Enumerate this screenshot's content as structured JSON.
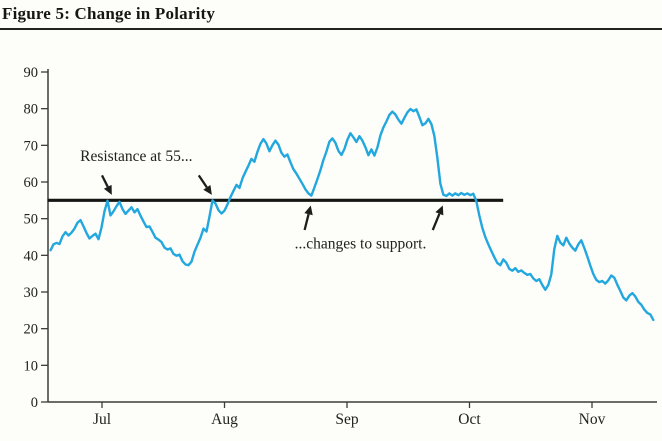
{
  "figure": {
    "title": "Figure 5: Change in Polarity"
  },
  "colors": {
    "series_line": "#22a7de",
    "ink": "#1d1d1b",
    "axis": "#3c3c38",
    "background": "#fdfdfa"
  },
  "chart_data": {
    "type": "line",
    "title": "Figure 5: Change in Polarity",
    "xlabel": "",
    "ylabel": "",
    "x_axis": {
      "tick_labels": [
        "Jul",
        "Aug",
        "Sep",
        "Oct",
        "Nov"
      ],
      "tick_positions_months": [
        0,
        1,
        2,
        3,
        4
      ]
    },
    "y_axis": {
      "ticks": [
        0,
        10,
        20,
        30,
        40,
        50,
        60,
        70,
        80,
        90
      ],
      "range": [
        0,
        90
      ]
    },
    "grid": false,
    "legend": "none",
    "series": [
      {
        "name": "polarity-index",
        "color": "#22a7de",
        "x_start_month": -0.42,
        "x_end_month": 4.5,
        "values": [
          41.4,
          43.0,
          43.4,
          43.1,
          45.2,
          46.3,
          45.4,
          46.2,
          47.3,
          48.9,
          49.6,
          47.9,
          46.1,
          44.6,
          45.3,
          45.9,
          44.4,
          47.6,
          52.0,
          54.9,
          50.9,
          52.0,
          53.4,
          54.6,
          52.6,
          51.3,
          52.2,
          53.1,
          51.7,
          52.6,
          50.8,
          49.2,
          47.7,
          47.9,
          46.4,
          44.8,
          44.3,
          43.6,
          42.1,
          41.6,
          41.9,
          40.4,
          39.9,
          40.2,
          38.4,
          37.5,
          37.3,
          38.3,
          41.0,
          42.9,
          44.8,
          47.3,
          46.5,
          50.6,
          55.0,
          54.1,
          52.3,
          51.4,
          52.2,
          53.9,
          55.9,
          57.6,
          59.2,
          58.4,
          61.0,
          62.8,
          64.5,
          66.3,
          65.5,
          68.2,
          70.4,
          71.7,
          70.5,
          68.4,
          70.0,
          71.3,
          70.2,
          68.0,
          66.9,
          67.5,
          65.4,
          63.5,
          62.3,
          60.9,
          59.5,
          58.0,
          56.9,
          56.3,
          58.5,
          60.8,
          63.2,
          66.0,
          68.3,
          71.0,
          71.9,
          70.7,
          68.5,
          67.4,
          69.0,
          71.5,
          73.3,
          72.2,
          70.9,
          72.5,
          71.3,
          69.5,
          67.3,
          68.9,
          67.2,
          69.4,
          72.7,
          74.9,
          76.5,
          78.3,
          79.2,
          78.4,
          77.0,
          75.9,
          77.5,
          79.0,
          79.9,
          79.3,
          79.8,
          77.7,
          75.5,
          76.0,
          77.2,
          75.8,
          72.5,
          66.5,
          59.5,
          56.5,
          56.2,
          56.9,
          56.3,
          56.9,
          56.4,
          57.0,
          56.5,
          56.9,
          56.4,
          56.8,
          54.8,
          50.9,
          47.5,
          45.0,
          43.0,
          41.2,
          39.5,
          37.9,
          37.3,
          38.9,
          38.0,
          36.3,
          35.8,
          36.5,
          35.5,
          35.9,
          35.2,
          34.7,
          34.9,
          33.7,
          33.0,
          33.5,
          31.9,
          30.6,
          31.9,
          34.8,
          41.7,
          45.3,
          43.5,
          42.7,
          44.8,
          43.2,
          42.1,
          41.3,
          43.0,
          44.1,
          42.0,
          39.7,
          37.2,
          34.9,
          33.3,
          32.7,
          33.0,
          32.3,
          33.2,
          34.5,
          33.9,
          32.0,
          30.3,
          28.5,
          27.7,
          29.0,
          29.7,
          28.8,
          27.3,
          26.5,
          25.2,
          24.3,
          23.9,
          22.4
        ]
      }
    ],
    "reference_line": {
      "label": "resistance-support-level",
      "value": 55,
      "x_from_month": -0.444,
      "x_to_month": 3.275,
      "color": "#161614"
    },
    "annotations": [
      {
        "id": "resistance",
        "text": "Resistance at 55...",
        "x_month": 0.28,
        "y_value": 65.7,
        "anchor": "middle"
      },
      {
        "id": "support",
        "text": "...changes to support.",
        "x_month": 2.11,
        "y_value": 41.8,
        "anchor": "middle"
      }
    ],
    "arrows": [
      {
        "id": "resistance-arrow-1",
        "from": [
          0.0,
          61.8
        ],
        "to": [
          0.08,
          56.5
        ]
      },
      {
        "id": "resistance-arrow-2",
        "from": [
          0.79,
          61.8
        ],
        "to": [
          0.897,
          56.5
        ]
      },
      {
        "id": "support-arrow-1",
        "from": [
          1.654,
          46.9
        ],
        "to": [
          1.704,
          53.6
        ]
      },
      {
        "id": "support-arrow-2",
        "from": [
          2.7,
          46.9
        ],
        "to": [
          2.782,
          53.6
        ]
      }
    ]
  }
}
